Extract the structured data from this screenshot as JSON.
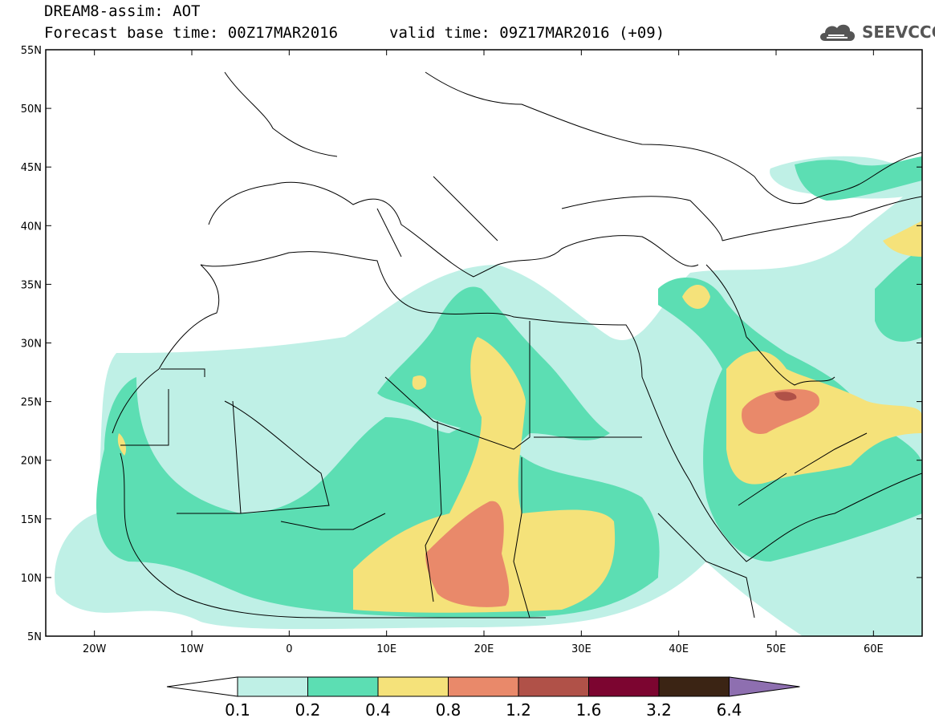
{
  "header": {
    "title": "DREAM8-assim: AOT",
    "base_time": "Forecast base time: 00Z17MAR2016",
    "valid_time": "valid time: 09Z17MAR2016 (+09)",
    "logo_text": "SEEVCCC",
    "logo_icon": "cloud-icon"
  },
  "map": {
    "projection": "lat-lon",
    "lon_range": [
      -25,
      65
    ],
    "lat_range": [
      5,
      55
    ],
    "lat_ticks": [
      "55N",
      "50N",
      "45N",
      "40N",
      "35N",
      "30N",
      "25N",
      "20N",
      "15N",
      "10N",
      "5N"
    ],
    "lon_ticks": [
      "20W",
      "10W",
      "0",
      "10E",
      "20E",
      "30E",
      "40E",
      "50E",
      "60E"
    ],
    "variable": "AOT"
  },
  "colorbar": {
    "levels": [
      "0.1",
      "0.2",
      "0.4",
      "0.8",
      "1.2",
      "1.6",
      "3.2",
      "6.4"
    ],
    "colors": [
      "#ffffff",
      "#bff0e6",
      "#5cdeb3",
      "#f5e27a",
      "#e9896a",
      "#b05148",
      "#7c0530",
      "#3b2414",
      "#8e6fb0"
    ]
  }
}
